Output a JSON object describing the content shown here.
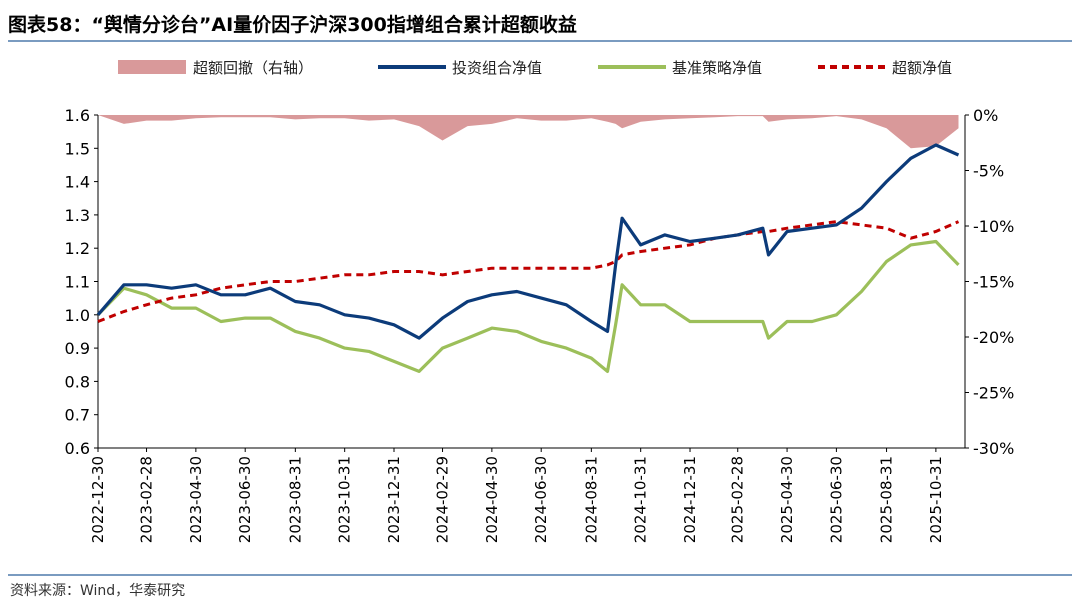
{
  "title": "图表58：“舆情分诊台”AI量价因子沪深300指增组合累计超额收益",
  "source": "资料来源：Wind，华泰研究",
  "colors": {
    "drawdown": "#d9999a",
    "portfolio": "#0c3b7a",
    "benchmark": "#9cbf5a",
    "excess": "#c00000",
    "rule": "#7a9bc0"
  },
  "chart_data": {
    "type": "line",
    "legend": [
      "超额回撤（右轴）",
      "投资组合净值",
      "基准策略净值",
      "超额净值"
    ],
    "legend_position": "top",
    "y_left": {
      "ylim": [
        0.6,
        1.6
      ],
      "ticks": [
        "0.6",
        "0.7",
        "0.8",
        "0.9",
        "1.0",
        "1.1",
        "1.2",
        "1.3",
        "1.4",
        "1.5",
        "1.6"
      ]
    },
    "y_right": {
      "ylim": [
        -30,
        0
      ],
      "ticks": [
        "0%",
        "-5%",
        "-10%",
        "-15%",
        "-20%",
        "-25%",
        "-30%"
      ]
    },
    "x_ticks": [
      "2022-12-30",
      "2023-02-28",
      "2023-04-30",
      "2023-06-30",
      "2023-08-31",
      "2023-10-31",
      "2023-12-31",
      "2024-02-29",
      "2024-04-30",
      "2024-06-30",
      "2024-08-31",
      "2024-10-31",
      "2024-12-31",
      "2025-02-28",
      "2025-04-30",
      "2025-06-30",
      "2025-08-31",
      "2025-10-31"
    ],
    "x": [
      "2022-12-30",
      "2023-01-31",
      "2023-02-28",
      "2023-03-31",
      "2023-04-30",
      "2023-05-31",
      "2023-06-30",
      "2023-07-31",
      "2023-08-31",
      "2023-09-30",
      "2023-10-31",
      "2023-11-30",
      "2023-12-31",
      "2024-01-31",
      "2024-02-29",
      "2024-03-31",
      "2024-04-30",
      "2024-05-31",
      "2024-06-30",
      "2024-07-31",
      "2024-08-31",
      "2024-09-20",
      "2024-09-30",
      "2024-10-08",
      "2024-10-31",
      "2024-11-30",
      "2024-12-31",
      "2025-01-31",
      "2025-02-28",
      "2025-03-31",
      "2025-04-07",
      "2025-04-30",
      "2025-05-31",
      "2025-06-30",
      "2025-07-31",
      "2025-08-31",
      "2025-09-30",
      "2025-10-31",
      "2025-11-28"
    ],
    "series": [
      {
        "name": "投资组合净值",
        "values": [
          1.0,
          1.09,
          1.09,
          1.08,
          1.09,
          1.06,
          1.06,
          1.08,
          1.04,
          1.03,
          1.0,
          0.99,
          0.97,
          0.93,
          0.99,
          1.04,
          1.06,
          1.07,
          1.05,
          1.03,
          0.98,
          0.95,
          1.15,
          1.29,
          1.21,
          1.24,
          1.22,
          1.23,
          1.24,
          1.26,
          1.18,
          1.25,
          1.26,
          1.27,
          1.32,
          1.4,
          1.47,
          1.51,
          1.48
        ]
      },
      {
        "name": "基准策略净值",
        "values": [
          1.0,
          1.08,
          1.06,
          1.02,
          1.02,
          0.98,
          0.99,
          0.99,
          0.95,
          0.93,
          0.9,
          0.89,
          0.86,
          0.83,
          0.9,
          0.93,
          0.96,
          0.95,
          0.92,
          0.9,
          0.87,
          0.83,
          0.97,
          1.09,
          1.03,
          1.03,
          0.98,
          0.98,
          0.98,
          0.98,
          0.93,
          0.98,
          0.98,
          1.0,
          1.07,
          1.16,
          1.21,
          1.22,
          1.15
        ]
      },
      {
        "name": "超额净值",
        "values": [
          0.98,
          1.01,
          1.03,
          1.05,
          1.06,
          1.08,
          1.09,
          1.1,
          1.1,
          1.11,
          1.12,
          1.12,
          1.13,
          1.13,
          1.12,
          1.13,
          1.14,
          1.14,
          1.14,
          1.14,
          1.14,
          1.15,
          1.16,
          1.18,
          1.19,
          1.2,
          1.21,
          1.23,
          1.24,
          1.25,
          1.25,
          1.26,
          1.27,
          1.28,
          1.27,
          1.26,
          1.23,
          1.25,
          1.28
        ]
      },
      {
        "name": "超额回撤（右轴）",
        "values": [
          0,
          -0.8,
          -0.5,
          -0.5,
          -0.3,
          -0.2,
          -0.2,
          -0.2,
          -0.4,
          -0.3,
          -0.3,
          -0.5,
          -0.4,
          -1.0,
          -2.3,
          -1.0,
          -0.8,
          -0.3,
          -0.5,
          -0.5,
          -0.3,
          -0.6,
          -0.8,
          -1.2,
          -0.6,
          -0.4,
          -0.3,
          -0.2,
          -0.1,
          -0.1,
          -0.6,
          -0.4,
          -0.3,
          -0.1,
          -0.4,
          -1.2,
          -3.0,
          -2.8,
          -1.2
        ]
      }
    ]
  }
}
